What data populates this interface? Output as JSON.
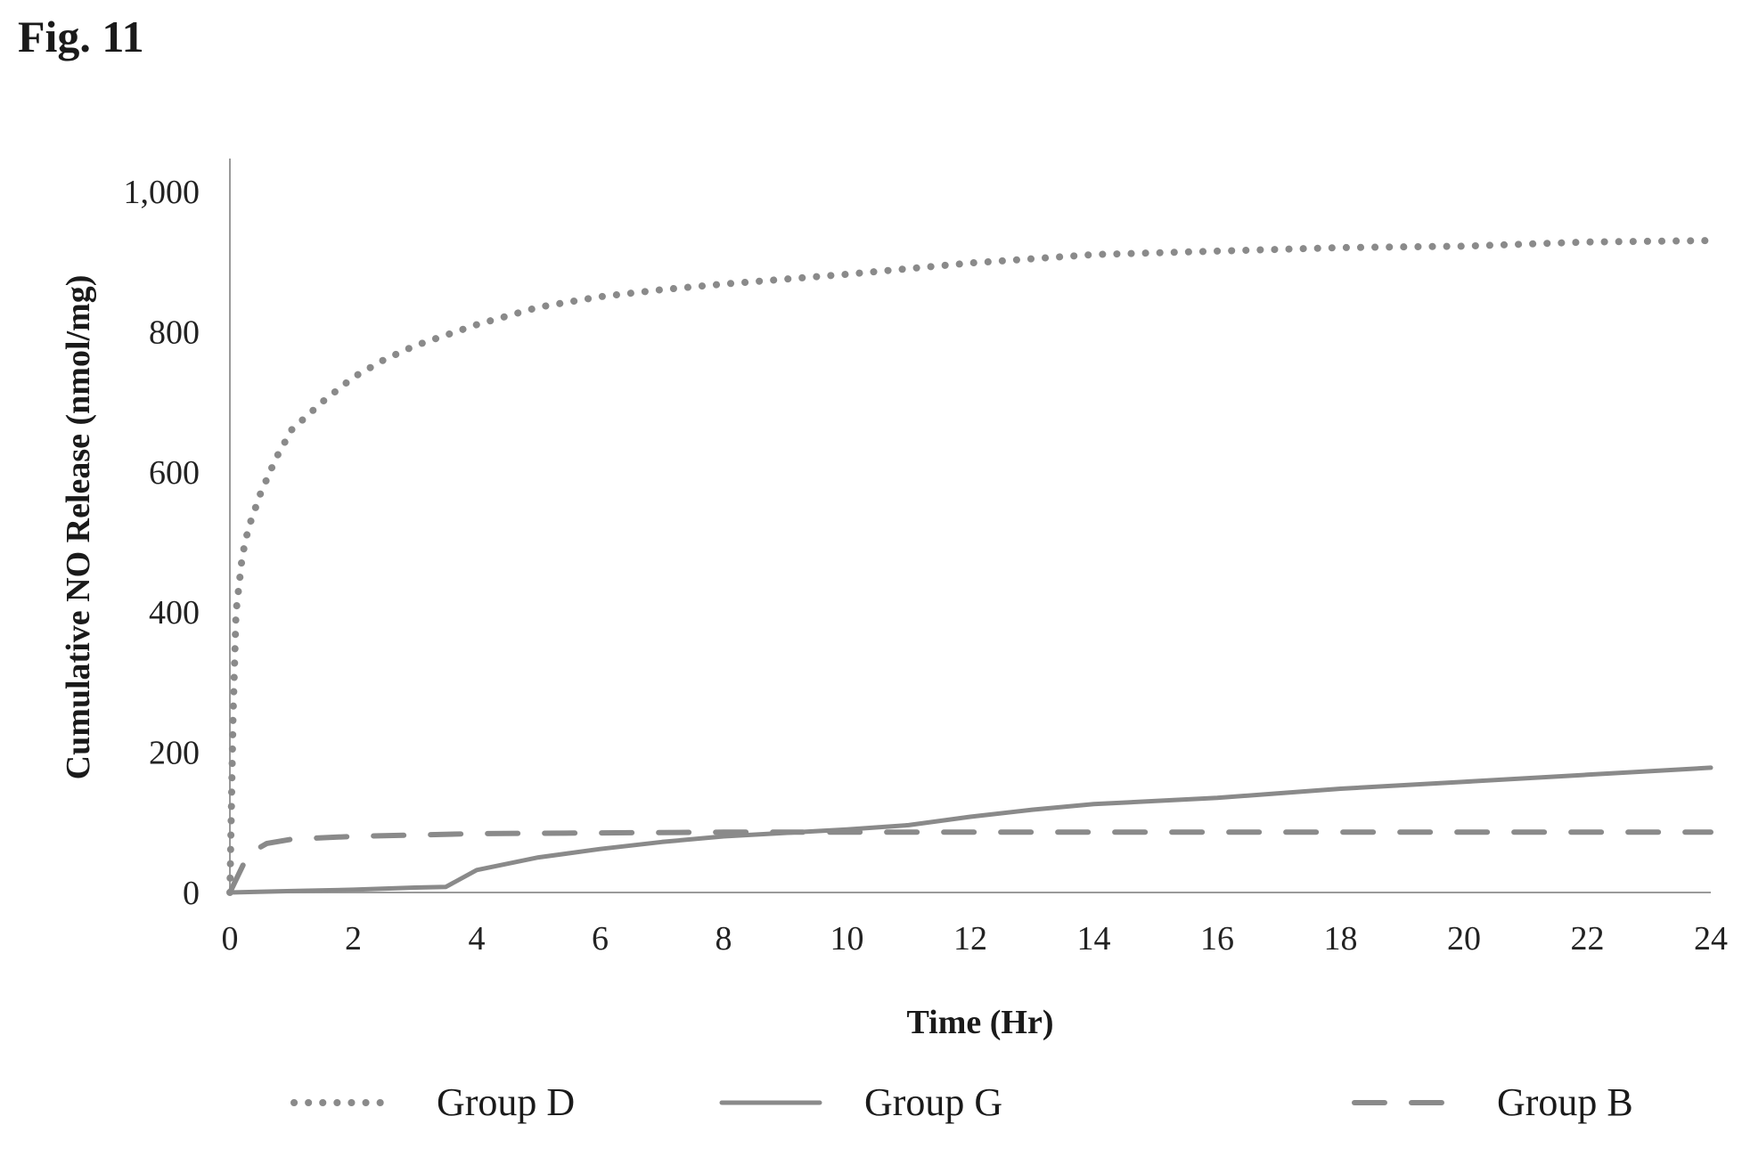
{
  "figure_label": "Fig. 11",
  "chart_data": {
    "type": "line",
    "title": "",
    "xlabel": "Time (Hr)",
    "ylabel": "Cumulative NO Release (nmol/mg)",
    "xlim": [
      0,
      24
    ],
    "ylim": [
      0,
      1000
    ],
    "x_ticks": [
      "0",
      "2",
      "4",
      "6",
      "8",
      "10",
      "12",
      "14",
      "16",
      "18",
      "20",
      "22",
      "24"
    ],
    "y_ticks": [
      "0",
      "200",
      "400",
      "600",
      "800",
      "1,000"
    ],
    "grid": false,
    "legend_position": "bottom",
    "series": [
      {
        "name": "Group D",
        "style": "dotted",
        "color": "#8a8a8a",
        "x": [
          0,
          0.05,
          0.1,
          0.2,
          0.3,
          0.5,
          0.75,
          1,
          1.5,
          2,
          2.5,
          3,
          3.5,
          4,
          5,
          6,
          7,
          8,
          9,
          10,
          11,
          12,
          14,
          16,
          18,
          20,
          22,
          24
        ],
        "y": [
          0,
          250,
          400,
          480,
          520,
          570,
          620,
          660,
          700,
          735,
          760,
          780,
          795,
          810,
          835,
          850,
          860,
          868,
          875,
          882,
          890,
          898,
          910,
          915,
          920,
          922,
          928,
          930
        ]
      },
      {
        "name": "Group G",
        "style": "solid",
        "color": "#8a8a8a",
        "x": [
          0,
          1,
          2,
          3,
          3.5,
          4,
          5,
          6,
          7,
          8,
          9,
          10,
          11,
          12,
          13,
          14,
          16,
          18,
          20,
          22,
          24
        ],
        "y": [
          0,
          2,
          4,
          7,
          8,
          32,
          50,
          62,
          72,
          80,
          85,
          90,
          96,
          108,
          118,
          126,
          135,
          148,
          158,
          168,
          178
        ]
      },
      {
        "name": "Group B",
        "style": "dashed",
        "color": "#8a8a8a",
        "x": [
          0,
          0.3,
          0.6,
          1,
          2,
          3,
          4,
          6,
          8,
          12,
          16,
          20,
          24
        ],
        "y": [
          0,
          55,
          70,
          76,
          80,
          82,
          84,
          85,
          86,
          86,
          86,
          86,
          86
        ]
      }
    ]
  }
}
